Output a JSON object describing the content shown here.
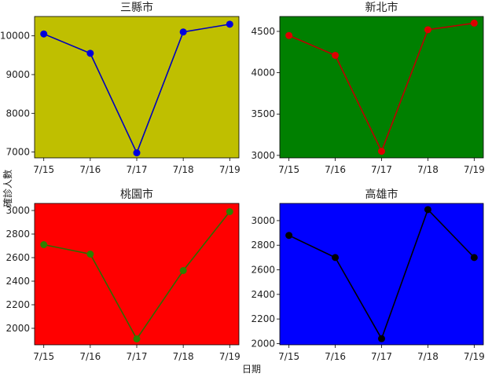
{
  "figure": {
    "xlabel": "日期",
    "ylabel": "確診人數"
  },
  "chart_data": [
    {
      "type": "line",
      "title": "三縣市",
      "categories": [
        "7/15",
        "7/16",
        "7/17",
        "7/18",
        "7/19"
      ],
      "values": [
        10050,
        9550,
        6980,
        10100,
        10300
      ],
      "ylim": [
        6850,
        10500
      ],
      "yticks": [
        7000,
        8000,
        9000,
        10000
      ],
      "ytick_labels": [
        "7000",
        "8000",
        "9000",
        "10000"
      ],
      "background": "#bfbf00",
      "line_color": "#0000bb",
      "marker_color": "#0000dd"
    },
    {
      "type": "line",
      "title": "新北市",
      "categories": [
        "7/15",
        "7/16",
        "7/17",
        "7/18",
        "7/19"
      ],
      "values": [
        4450,
        4210,
        3050,
        4520,
        4600
      ],
      "ylim": [
        2970,
        4680
      ],
      "yticks": [
        3000,
        3500,
        4000,
        4500
      ],
      "ytick_labels": [
        "3000",
        "3500",
        "4000",
        "4500"
      ],
      "background": "#008000",
      "line_color": "#bb0000",
      "marker_color": "#dd0000"
    },
    {
      "type": "line",
      "title": "桃園市",
      "categories": [
        "7/15",
        "7/16",
        "7/17",
        "7/18",
        "7/19"
      ],
      "values": [
        2710,
        2630,
        1910,
        2490,
        2990
      ],
      "ylim": [
        1860,
        3060
      ],
      "yticks": [
        2000,
        2200,
        2400,
        2600,
        2800,
        3000
      ],
      "ytick_labels": [
        "2000",
        "2200",
        "2400",
        "2600",
        "2800",
        "3000"
      ],
      "background": "#ff0000",
      "line_color": "#2e6b00",
      "marker_color": "#2e8000"
    },
    {
      "type": "line",
      "title": "高雄市",
      "categories": [
        "7/15",
        "7/16",
        "7/17",
        "7/18",
        "7/19"
      ],
      "values": [
        2880,
        2700,
        2040,
        3090,
        2700
      ],
      "ylim": [
        1990,
        3140
      ],
      "yticks": [
        2000,
        2200,
        2400,
        2600,
        2800,
        3000
      ],
      "ytick_labels": [
        "2000",
        "2200",
        "2400",
        "2600",
        "2800",
        "3000"
      ],
      "background": "#0000ff",
      "line_color": "#000000",
      "marker_color": "#000000"
    }
  ]
}
